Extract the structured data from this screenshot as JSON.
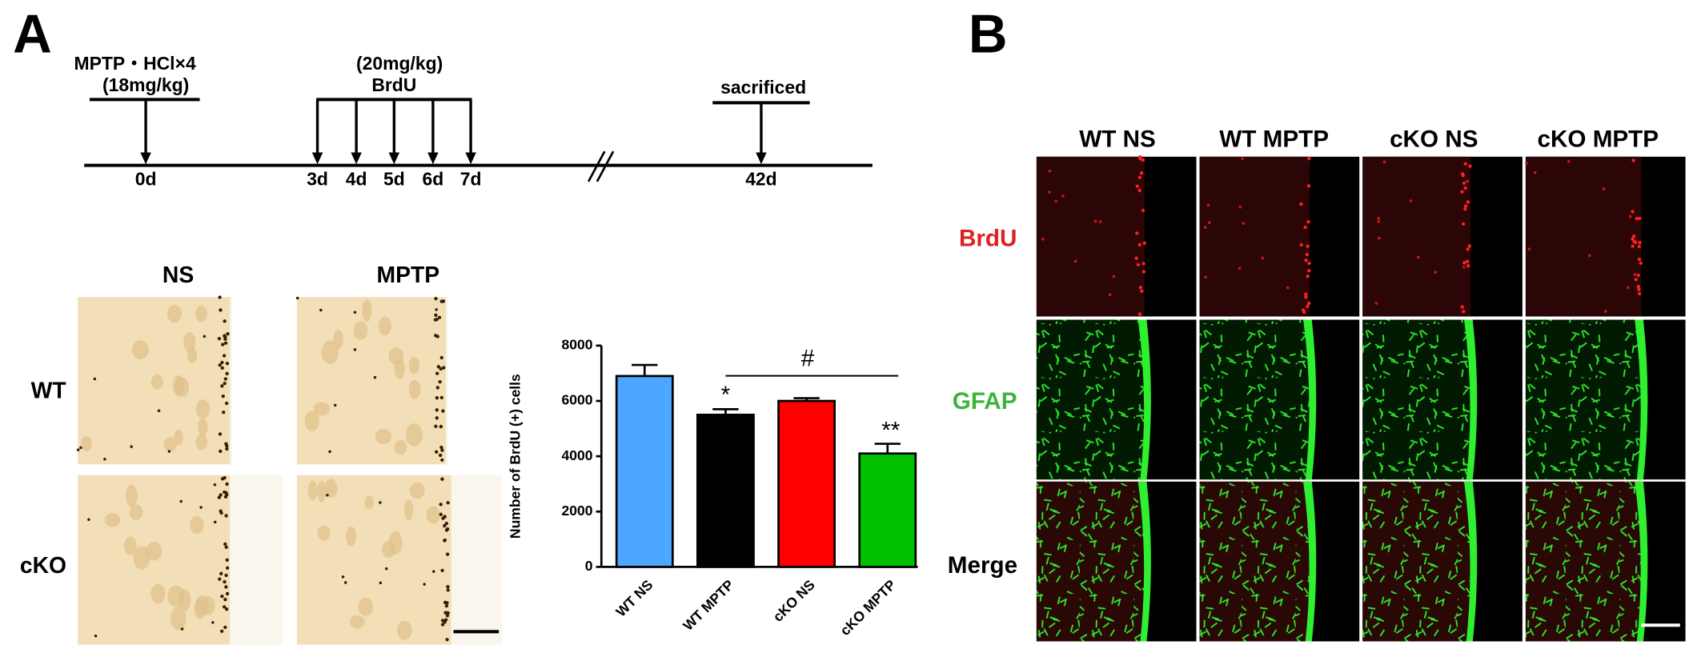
{
  "panels": {
    "a": "A",
    "b": "B"
  },
  "timeline": {
    "events": [
      {
        "lines": [
          "MPTP・HCl×4",
          "(18mg/kg)"
        ],
        "days": [
          "0d"
        ]
      },
      {
        "lines": [
          "(20mg/kg)",
          "BrdU"
        ],
        "days": [
          "3d",
          "4d",
          "5d",
          "6d",
          "7d"
        ]
      },
      {
        "lines": [
          "sacrificed"
        ],
        "days": [
          "42d"
        ]
      }
    ]
  },
  "micrographs": {
    "columns": [
      "NS",
      "MPTP"
    ],
    "rows": [
      "WT",
      "cKO"
    ]
  },
  "chart_data": {
    "type": "bar",
    "y_label": "Number of BrdU (+) cells",
    "categories": [
      "WT NS",
      "WT MPTP",
      "cKO NS",
      "cKO MPTP"
    ],
    "values": [
      6900,
      5500,
      6000,
      4100
    ],
    "errors": [
      400,
      200,
      100,
      350
    ],
    "colors": [
      "#4da6ff",
      "#000000",
      "#ff0000",
      "#00c000"
    ],
    "ylim": [
      0,
      8000
    ],
    "yticks": [
      0,
      2000,
      4000,
      6000,
      8000
    ],
    "annotations": [
      "*",
      "#",
      "**"
    ]
  },
  "fluorescence": {
    "columns": [
      "WT NS",
      "WT MPTP",
      "cKO NS",
      "cKO MPTP"
    ],
    "rows": [
      "BrdU",
      "GFAP",
      "Merge"
    ]
  }
}
